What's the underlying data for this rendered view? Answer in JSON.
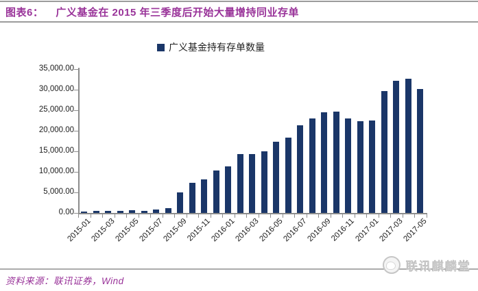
{
  "header": {
    "figure_label": "图表6：",
    "title": "广义基金在 2015 年三季度后开始大量增持同业存单"
  },
  "legend": {
    "label": "广义基金持有存单数量"
  },
  "chart_data": {
    "type": "bar",
    "title": "广义基金持有存单数量",
    "categories": [
      "2015-01",
      "2015-02",
      "2015-03",
      "2015-04",
      "2015-05",
      "2015-06",
      "2015-07",
      "2015-08",
      "2015-09",
      "2015-10",
      "2015-11",
      "2015-12",
      "2016-01",
      "2016-02",
      "2016-03",
      "2016-04",
      "2016-05",
      "2016-06",
      "2016-07",
      "2016-08",
      "2016-09",
      "2016-10",
      "2016-11",
      "2016-12",
      "2017-01",
      "2017-02",
      "2017-03",
      "2017-04",
      "2017-05"
    ],
    "values": [
      400,
      500,
      500,
      500,
      600,
      500,
      800,
      1200,
      5000,
      7400,
      8100,
      10400,
      11400,
      14400,
      14300,
      15000,
      17400,
      18400,
      21400,
      23000,
      24500,
      24700,
      23000,
      22400,
      22500,
      29700,
      32100,
      32700,
      30100
    ],
    "xlabel": "",
    "ylabel": "",
    "ylim": [
      0,
      35000
    ],
    "ytick_step": 5000,
    "ytick_labels": [
      "0.00",
      "5,000.00",
      "10,000.00",
      "15,000.00",
      "20,000.00",
      "25,000.00",
      "30,000.00",
      "35,000.00"
    ],
    "x_tick_label_every": 2,
    "grid": false,
    "legend_position": "top-center",
    "bar_color": "#1A3668"
  },
  "footer": {
    "source": "资料来源：联讯证券，Wind"
  },
  "watermark": {
    "text": "联讯麒麟堂"
  },
  "colors": {
    "accent": "#993399",
    "bar": "#1A3668",
    "axis": "#8c8c8c",
    "rule": "#9b9b9b",
    "rule_light": "#ababab",
    "watermark": "#c6c6c6"
  }
}
